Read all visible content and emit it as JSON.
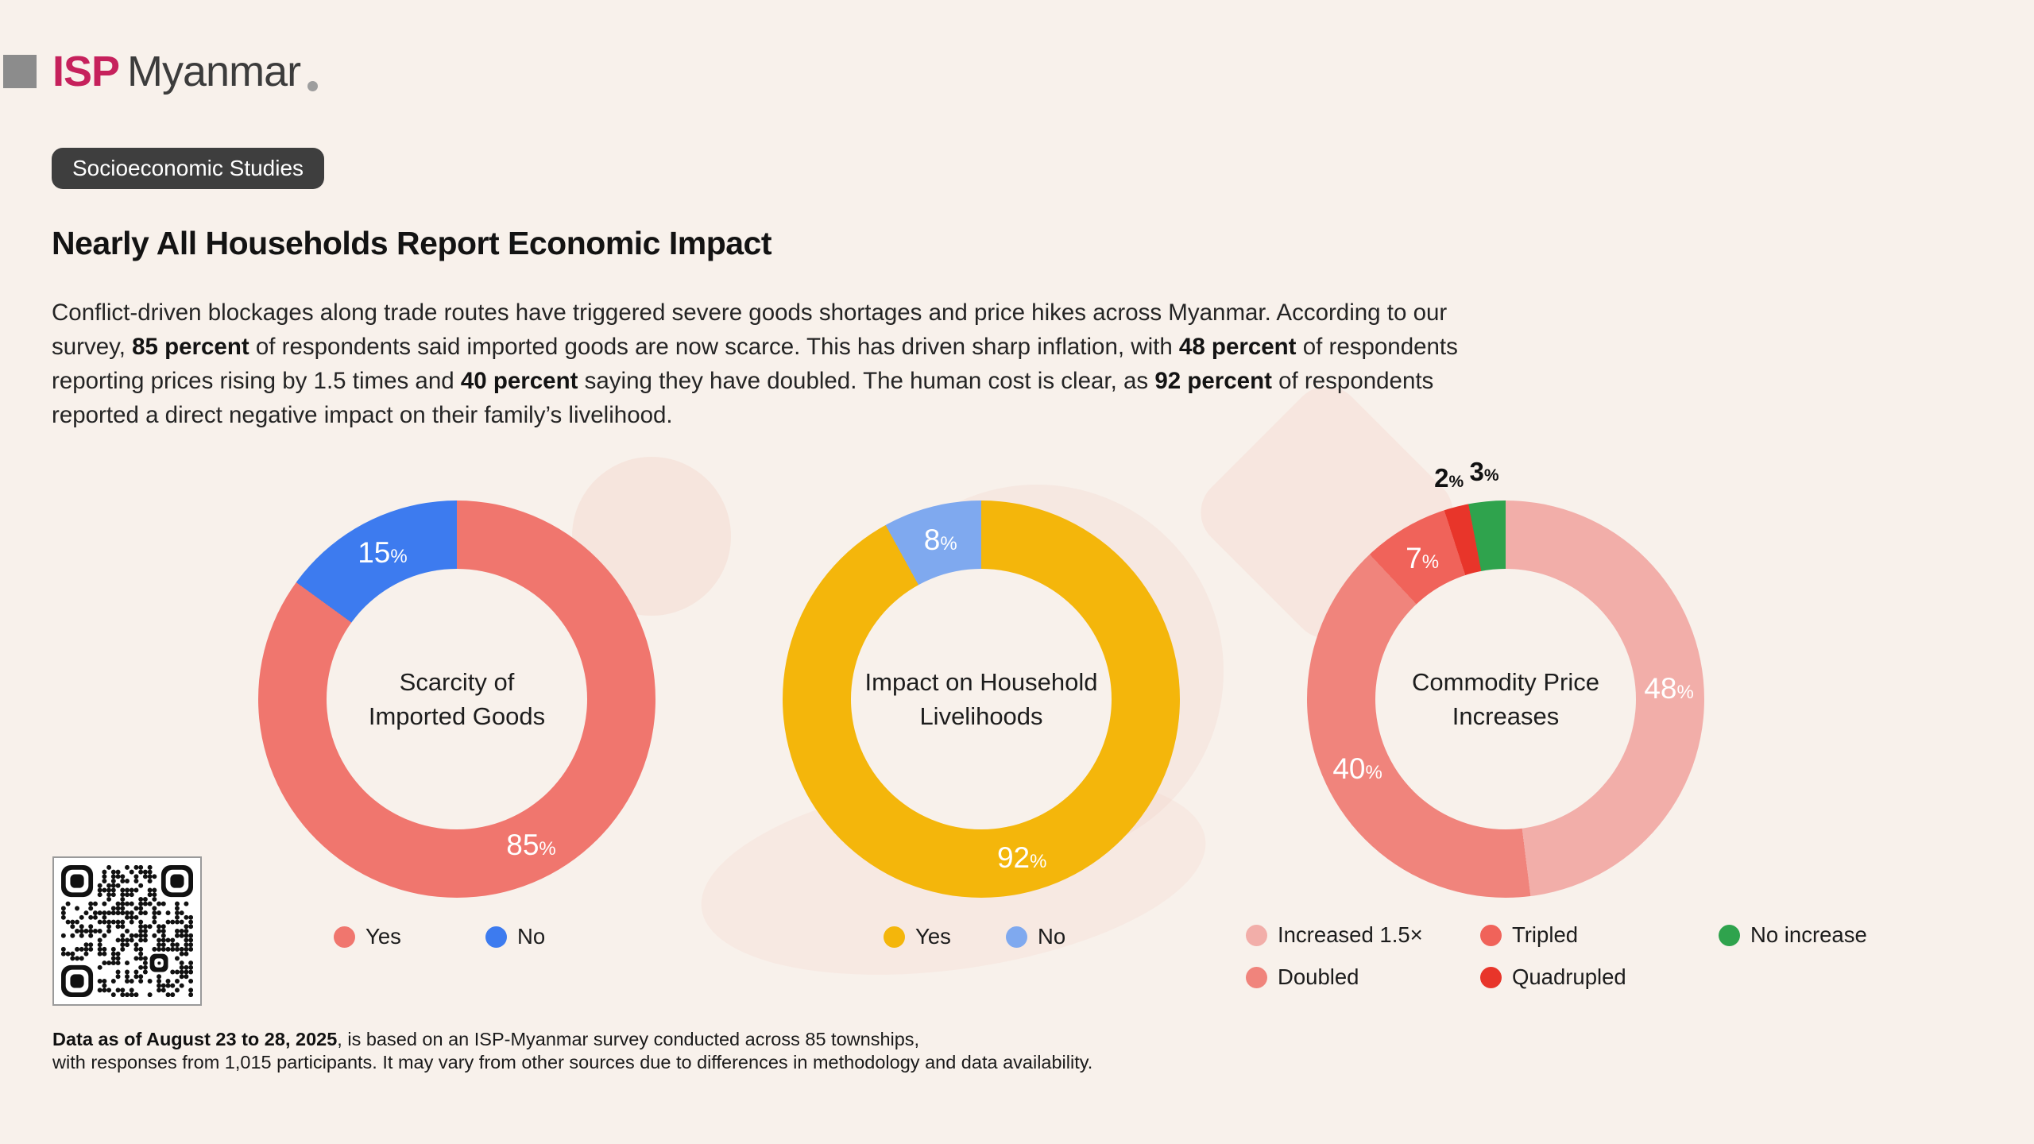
{
  "logo": {
    "isp": "ISP",
    "myanmar": "Myanmar",
    "isp_color": "#C6215C",
    "square_color": "#8C8C8C",
    "dot_color": "#9E9E9E"
  },
  "badge": {
    "label": "Socioeconomic Studies",
    "bg": "#3E3E3E",
    "text_color": "#FFFFFF"
  },
  "title": "Nearly All Households Report Economic Impact",
  "intro": {
    "segments": [
      {
        "text": "Conflict-driven blockages along trade routes have triggered severe goods shortages and price hikes across Myanmar. According to our survey, ",
        "bold": false
      },
      {
        "text": "85 percent",
        "bold": true
      },
      {
        "text": " of respondents said imported goods are now scarce. This has driven sharp inflation, with ",
        "bold": false
      },
      {
        "text": "48 percent",
        "bold": true
      },
      {
        "text": " of respondents reporting prices rising by 1.5 times and ",
        "bold": false
      },
      {
        "text": "40 percent",
        "bold": true
      },
      {
        "text": " saying they have doubled. The human cost is clear, as ",
        "bold": false
      },
      {
        "text": "92 percent",
        "bold": true
      },
      {
        "text": " of respondents reported a direct negative impact on their family’s livelihood.",
        "bold": false
      }
    ]
  },
  "chart_data": [
    {
      "type": "pie",
      "variant": "donut",
      "title": "Scarcity of Imported Goods",
      "center": [
        "Scarcity of",
        "Imported Goods"
      ],
      "value_suffix": "%",
      "segments": [
        {
          "label": "Yes",
          "value": 85,
          "color": "#F0766E",
          "label_placement": "inside"
        },
        {
          "label": "No",
          "value": 15,
          "color": "#3D7BEF",
          "label_placement": "inside"
        }
      ],
      "legend": [
        {
          "label": "Yes",
          "color": "#F0766E"
        },
        {
          "label": "No",
          "color": "#3D7BEF"
        }
      ],
      "legend_position": "bottom"
    },
    {
      "type": "pie",
      "variant": "donut",
      "title": "Impact on Household Livelihoods",
      "center": [
        "Impact on Household",
        "Livelihoods"
      ],
      "value_suffix": "%",
      "segments": [
        {
          "label": "Yes",
          "value": 92,
          "color": "#F4B60B",
          "label_placement": "inside"
        },
        {
          "label": "No",
          "value": 8,
          "color": "#7FA9EF",
          "label_placement": "inside"
        }
      ],
      "legend": [
        {
          "label": "Yes",
          "color": "#F4B60B"
        },
        {
          "label": "No",
          "color": "#7FA9EF"
        }
      ],
      "legend_position": "bottom"
    },
    {
      "type": "pie",
      "variant": "donut",
      "title": "Commodity Price Increases",
      "center": [
        "Commodity Price",
        "Increases"
      ],
      "value_suffix": "%",
      "segments": [
        {
          "label": "Increased 1.5×",
          "value": 48,
          "color": "#F2AEA9",
          "label_placement": "inside"
        },
        {
          "label": "Doubled",
          "value": 40,
          "color": "#F0847C",
          "label_placement": "inside"
        },
        {
          "label": "Tripled",
          "value": 7,
          "color": "#F0635A",
          "label_placement": "inside"
        },
        {
          "label": "Quadrupled",
          "value": 2,
          "color": "#E8352A",
          "label_placement": "outside"
        },
        {
          "label": "No increase",
          "value": 3,
          "color": "#2FA34D",
          "label_placement": "outside"
        }
      ],
      "legend": [
        {
          "label": "Increased 1.5×",
          "color": "#F2AEA9"
        },
        {
          "label": "Tripled",
          "color": "#F0635A"
        },
        {
          "label": "No increase",
          "color": "#2FA34D"
        },
        {
          "label": "Doubled",
          "color": "#F0847C"
        },
        {
          "label": "Quadrupled",
          "color": "#E8352A"
        }
      ],
      "legend_position": "bottom"
    }
  ],
  "footer": {
    "bold": "Data as of August 23 to 28, 2025",
    "line1_rest": ", is based on an ISP-Myanmar survey conducted across 85 townships,",
    "line2": "with responses from 1,015 participants. It may vary from other sources due to differences in methodology and data availability."
  }
}
